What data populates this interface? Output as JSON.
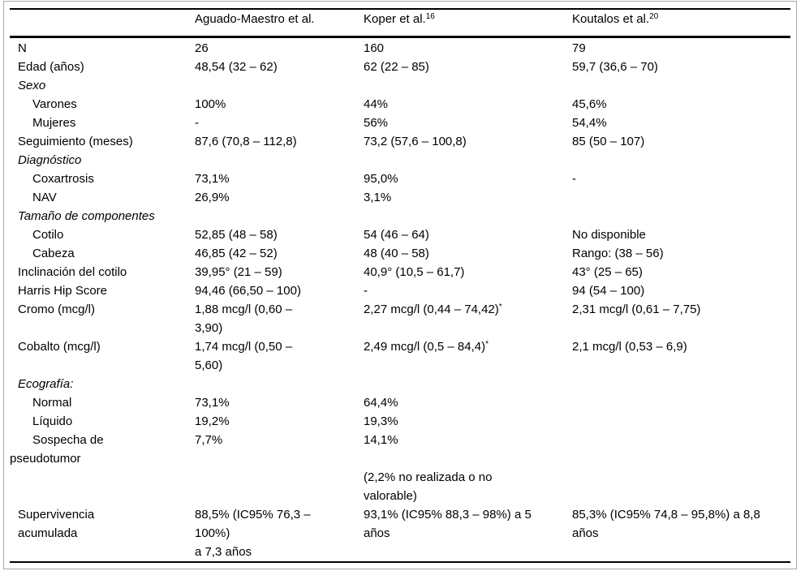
{
  "table": {
    "columns": [
      {
        "text": "",
        "sup": ""
      },
      {
        "text": "Aguado-Maestro et al.",
        "sup": ""
      },
      {
        "text": "Koper et al.",
        "sup": "16"
      },
      {
        "text": "Koutalos et al.",
        "sup": "20"
      }
    ],
    "rows": [
      {
        "label": "N",
        "style": "plain",
        "cells": [
          {
            "text": "26"
          },
          {
            "text": "160"
          },
          {
            "text": "79"
          }
        ]
      },
      {
        "label": "Edad (años)",
        "style": "plain",
        "cells": [
          {
            "text": "48,54 (32 – 62)"
          },
          {
            "text": "62 (22 – 85)"
          },
          {
            "text": "59,7 (36,6 – 70)"
          }
        ]
      },
      {
        "label": "Sexo",
        "style": "section",
        "cells": [
          {
            "text": ""
          },
          {
            "text": ""
          },
          {
            "text": ""
          }
        ]
      },
      {
        "label": "Varones",
        "style": "sub",
        "cells": [
          {
            "text": "100%"
          },
          {
            "text": "44%"
          },
          {
            "text": "45,6%"
          }
        ]
      },
      {
        "label": "Mujeres",
        "style": "sub",
        "cells": [
          {
            "text": "-"
          },
          {
            "text": "56%"
          },
          {
            "text": "54,4%"
          }
        ]
      },
      {
        "label": "Seguimiento (meses)",
        "style": "plain",
        "cells": [
          {
            "text": "87,6 (70,8 – 112,8)"
          },
          {
            "text": "73,2 (57,6 – 100,8)"
          },
          {
            "text": "85 (50 – 107)"
          }
        ]
      },
      {
        "label": "Diagnóstico",
        "style": "section",
        "cells": [
          {
            "text": ""
          },
          {
            "text": ""
          },
          {
            "text": ""
          }
        ]
      },
      {
        "label": "Coxartrosis",
        "style": "sub",
        "cells": [
          {
            "text": "73,1%"
          },
          {
            "text": "95,0%"
          },
          {
            "text": "-"
          }
        ]
      },
      {
        "label": "NAV",
        "style": "sub",
        "cells": [
          {
            "text": "26,9%"
          },
          {
            "text": "3,1%"
          },
          {
            "text": ""
          }
        ]
      },
      {
        "label": "Tamaño de componentes",
        "style": "section",
        "cells": [
          {
            "text": ""
          },
          {
            "text": ""
          },
          {
            "text": ""
          }
        ]
      },
      {
        "label": "Cotilo",
        "style": "sub",
        "cells": [
          {
            "text": "52,85 (48 – 58)"
          },
          {
            "text": "54 (46 – 64)"
          },
          {
            "text": "No disponible"
          }
        ]
      },
      {
        "label": "Cabeza",
        "style": "sub",
        "cells": [
          {
            "text": "46,85 (42 – 52)"
          },
          {
            "text": "48 (40 – 58)"
          },
          {
            "text": "Rango: (38 – 56)"
          }
        ]
      },
      {
        "label": "Inclinación del cotilo",
        "style": "plain",
        "cells": [
          {
            "text": "39,95° (21 – 59)"
          },
          {
            "text": "40,9° (10,5 – 61,7)"
          },
          {
            "text": "43° (25 – 65)"
          }
        ]
      },
      {
        "label": "Harris Hip Score",
        "style": "plain",
        "cells": [
          {
            "text": "94,46 (66,50 – 100)"
          },
          {
            "text": "-"
          },
          {
            "text": "94 (54 – 100)"
          }
        ]
      },
      {
        "label": "Cromo (mcg/l)",
        "style": "plain",
        "cells": [
          {
            "text": "1,88 mcg/l (0,60 –\n3,90)"
          },
          {
            "text": "2,27 mcg/l (0,44 – 74,42)",
            "sup": "*"
          },
          {
            "text": "2,31 mcg/l (0,61 – 7,75)"
          }
        ]
      },
      {
        "label": "Cobalto (mcg/l)",
        "style": "plain",
        "cells": [
          {
            "text": "1,74 mcg/l (0,50 –\n5,60)"
          },
          {
            "text": "2,49 mcg/l (0,5 – 84,4)",
            "sup": "*"
          },
          {
            "text": "2,1 mcg/l (0,53 – 6,9)"
          }
        ]
      },
      {
        "label": "Ecografía:",
        "style": "section",
        "cells": [
          {
            "text": ""
          },
          {
            "text": ""
          },
          {
            "text": ""
          }
        ]
      },
      {
        "label": "Normal",
        "style": "sub",
        "cells": [
          {
            "text": "73,1%"
          },
          {
            "text": "64,4%"
          },
          {
            "text": ""
          }
        ]
      },
      {
        "label": "Líquido",
        "style": "sub",
        "cells": [
          {
            "text": "19,2%"
          },
          {
            "text": "19,3%"
          },
          {
            "text": ""
          }
        ]
      },
      {
        "label": "Sospecha de\npseudotumor",
        "style": "hang",
        "cells": [
          {
            "text": "7,7%"
          },
          {
            "text": "14,1%"
          },
          {
            "text": ""
          }
        ]
      },
      {
        "label": "",
        "style": "plain",
        "cells": [
          {
            "text": ""
          },
          {
            "text": "(2,2% no realizada o no\nvalorable)"
          },
          {
            "text": ""
          }
        ]
      },
      {
        "label": "Supervivencia\nacumulada",
        "style": "plain",
        "cells": [
          {
            "text": "88,5% (IC95% 76,3 –\n100%)\na 7,3 años"
          },
          {
            "text": "93,1% (IC95% 88,3 – 98%) a 5\naños"
          },
          {
            "text": "85,3% (IC95% 74,8 – 95,8%) a 8,8\naños"
          }
        ]
      }
    ]
  }
}
